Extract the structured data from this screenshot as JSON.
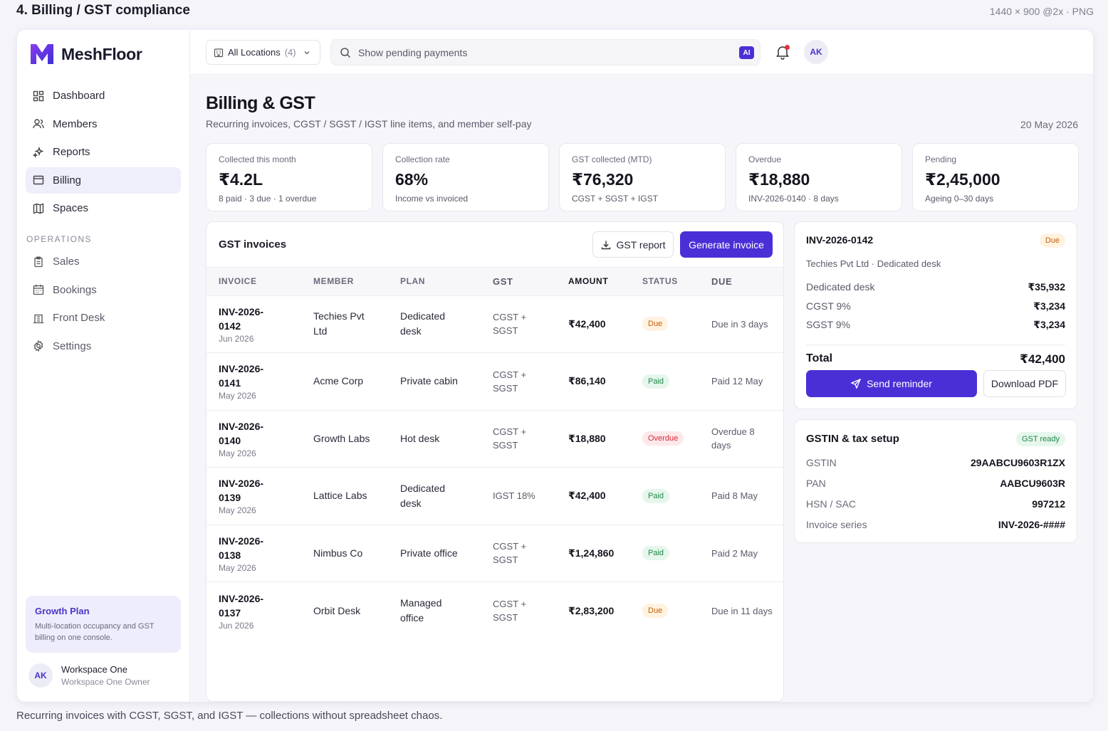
{
  "caption": {
    "title": "4. Billing / GST compliance",
    "dims": "1440 × 900 @2x · PNG",
    "footer": "Recurring invoices with CGST, SGST, and IGST — collections without spreadsheet chaos."
  },
  "brand": {
    "name": "MeshFloor",
    "accent": "#4b2fd6"
  },
  "sidebar": {
    "items": [
      {
        "label": "Dashboard",
        "icon": "grid-icon"
      },
      {
        "label": "Members",
        "icon": "users-icon"
      },
      {
        "label": "Reports",
        "icon": "sparkle-icon"
      },
      {
        "label": "Billing",
        "icon": "billing-icon",
        "active": true
      },
      {
        "label": "Spaces",
        "icon": "map-icon"
      }
    ],
    "section_label": "OPERATIONS",
    "ops_items": [
      {
        "label": "Sales",
        "icon": "clipboard-icon"
      },
      {
        "label": "Bookings",
        "icon": "calendar-icon"
      },
      {
        "label": "Front Desk",
        "icon": "desk-icon"
      },
      {
        "label": "Settings",
        "icon": "gear-icon"
      }
    ],
    "growth": {
      "title": "Growth Plan",
      "desc": "Multi-location occupancy and GST billing on one console."
    },
    "workspace": {
      "initials": "AK",
      "name": "Workspace One",
      "role": "Workspace One Owner"
    }
  },
  "topbar": {
    "location_label": "All Locations",
    "location_count": "(4)",
    "search_placeholder": "Show pending payments",
    "ai_badge": "AI",
    "avatar_initials": "AK"
  },
  "page": {
    "title": "Billing & GST",
    "subtitle": "Recurring invoices, CGST / SGST / IGST line items, and member self-pay",
    "date": "20 May 2026"
  },
  "stats": [
    {
      "label": "Collected this month",
      "value": "₹4.2L",
      "sub": "8 paid · 3 due · 1 overdue"
    },
    {
      "label": "Collection rate",
      "value": "68%",
      "sub": "Income vs invoiced"
    },
    {
      "label": "GST collected (MTD)",
      "value": "₹76,320",
      "sub": "CGST + SGST + IGST"
    },
    {
      "label": "Overdue",
      "value": "₹18,880",
      "sub": "INV-2026-0140 · 8 days"
    },
    {
      "label": "Pending",
      "value": "₹2,45,000",
      "sub": "Ageing 0–30 days"
    }
  ],
  "invoices": {
    "title": "GST invoices",
    "gst_report_label": "GST report",
    "generate_label": "Generate invoice",
    "columns": [
      "INVOICE",
      "MEMBER",
      "PLAN",
      "GST",
      "AMOUNT",
      "STATUS",
      "DUE"
    ],
    "rows": [
      {
        "id": "INV-2026-0142",
        "month": "Jun 2026",
        "member": "Techies Pvt Ltd",
        "plan": "Dedicated desk",
        "gst": "CGST + SGST",
        "amount": "₹42,400",
        "status": "Due",
        "status_kind": "due",
        "due": "Due in 3 days"
      },
      {
        "id": "INV-2026-0141",
        "month": "May 2026",
        "member": "Acme Corp",
        "plan": "Private cabin",
        "gst": "CGST + SGST",
        "amount": "₹86,140",
        "status": "Paid",
        "status_kind": "paid",
        "due": "Paid 12 May"
      },
      {
        "id": "INV-2026-0140",
        "month": "May 2026",
        "member": "Growth Labs",
        "plan": "Hot desk",
        "gst": "CGST + SGST",
        "amount": "₹18,880",
        "status": "Overdue",
        "status_kind": "overdue",
        "due": "Overdue 8 days"
      },
      {
        "id": "INV-2026-0139",
        "month": "May 2026",
        "member": "Lattice Labs",
        "plan": "Dedicated desk",
        "gst": "IGST 18%",
        "amount": "₹42,400",
        "status": "Paid",
        "status_kind": "paid",
        "due": "Paid 8 May"
      },
      {
        "id": "INV-2026-0138",
        "month": "May 2026",
        "member": "Nimbus Co",
        "plan": "Private office",
        "gst": "CGST + SGST",
        "amount": "₹1,24,860",
        "status": "Paid",
        "status_kind": "paid",
        "due": "Paid 2 May"
      },
      {
        "id": "INV-2026-0137",
        "month": "Jun 2026",
        "member": "Orbit Desk",
        "plan": "Managed office",
        "gst": "CGST + SGST",
        "amount": "₹2,83,200",
        "status": "Due",
        "status_kind": "due",
        "due": "Due in 11 days"
      }
    ]
  },
  "detail": {
    "id": "INV-2026-0142",
    "status": "Due",
    "sub": "Techies Pvt Ltd · Dedicated desk",
    "lines": [
      {
        "label": "Dedicated desk",
        "value": "₹35,932"
      },
      {
        "label": "CGST 9%",
        "value": "₹3,234"
      },
      {
        "label": "SGST 9%",
        "value": "₹3,234"
      }
    ],
    "total_label": "Total",
    "total_value": "₹42,400",
    "send_label": "Send reminder",
    "pdf_label": "Download PDF"
  },
  "gstin": {
    "title": "GSTIN & tax setup",
    "badge": "GST ready",
    "rows": [
      {
        "label": "GSTIN",
        "value": "29AABCU9603R1ZX"
      },
      {
        "label": "PAN",
        "value": "AABCU9603R"
      },
      {
        "label": "HSN / SAC",
        "value": "997212"
      },
      {
        "label": "Invoice series",
        "value": "INV-2026-####"
      }
    ]
  }
}
